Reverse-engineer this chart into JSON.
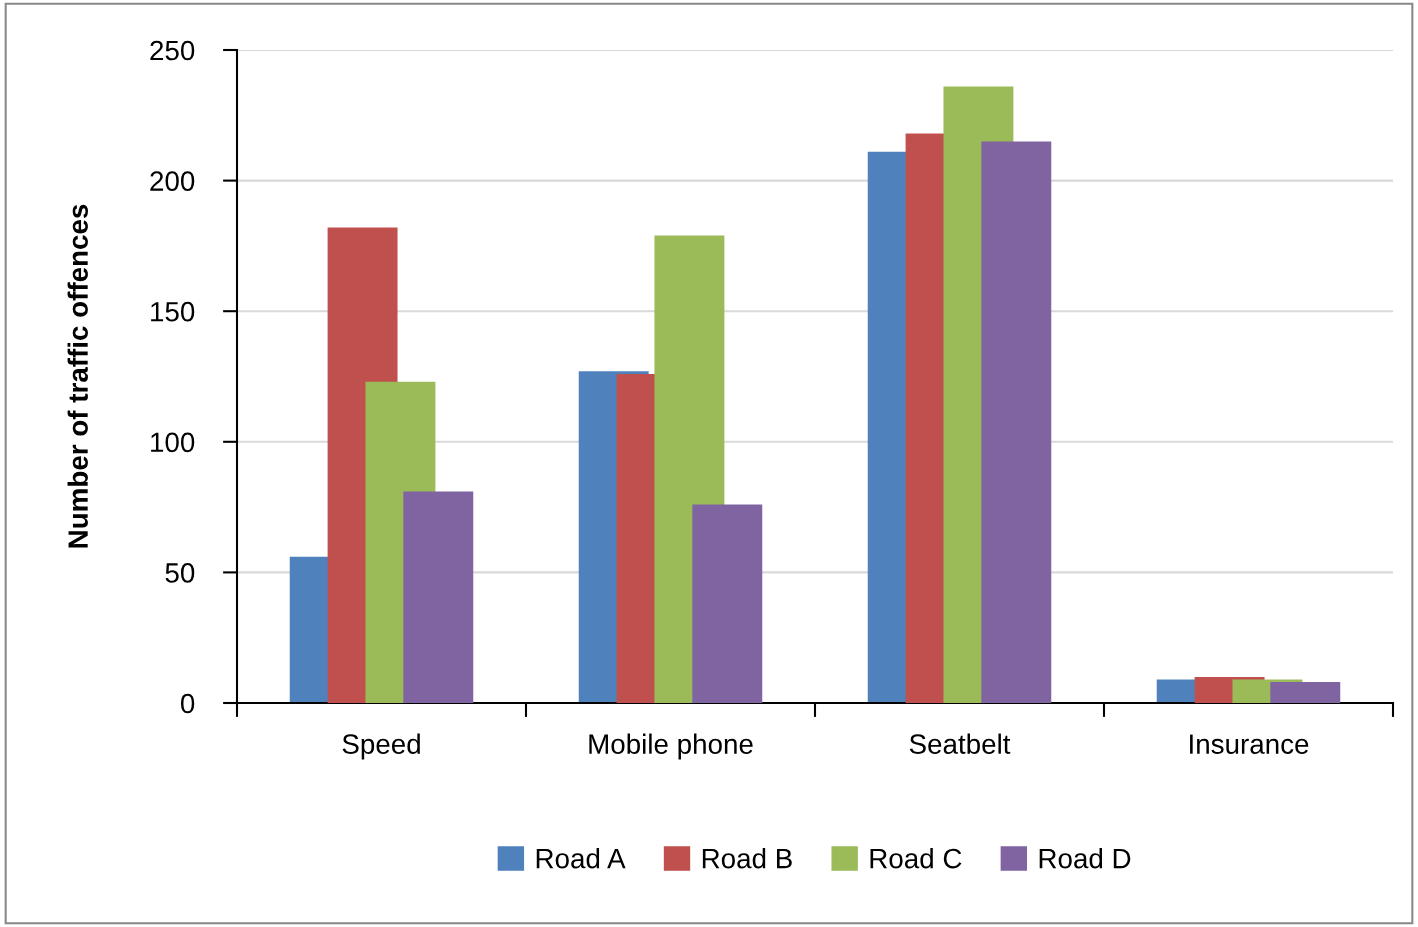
{
  "chart_data": {
    "type": "bar",
    "ylabel": "Number of traffic offences",
    "categories": [
      "Speed",
      "Mobile phone",
      "Seatbelt",
      "Insurance"
    ],
    "series": [
      {
        "name": "Road A",
        "color": "#4f81bd",
        "values": [
          56,
          127,
          211,
          9
        ]
      },
      {
        "name": "Road B",
        "color": "#c0504d",
        "values": [
          182,
          126,
          218,
          10
        ]
      },
      {
        "name": "Road C",
        "color": "#9bbb59",
        "values": [
          123,
          179,
          236,
          9
        ]
      },
      {
        "name": "Road D",
        "color": "#8064a2",
        "values": [
          81,
          76,
          215,
          8
        ]
      }
    ],
    "ylim": [
      0,
      250
    ],
    "yticks": [
      0,
      50,
      100,
      150,
      200,
      250
    ],
    "grid": "y",
    "legend": "bottom"
  }
}
